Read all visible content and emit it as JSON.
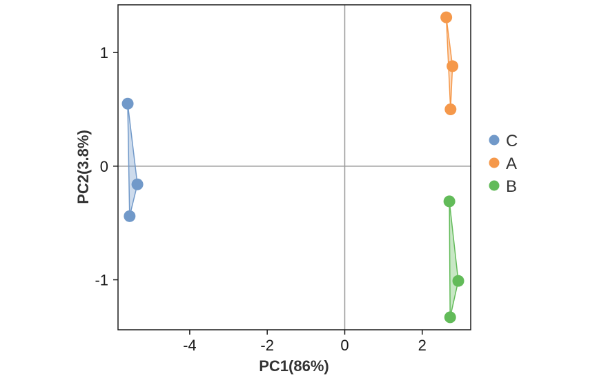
{
  "chart_data": {
    "type": "scatter",
    "xlabel": "PC1(86%)",
    "ylabel": "PC2(3.8%)",
    "xlim": [
      -5.85,
      3.25
    ],
    "ylim": [
      -1.44,
      1.42
    ],
    "xticks": [
      -4,
      -2,
      0,
      2
    ],
    "yticks": [
      1,
      0,
      -1
    ],
    "x_tick_labels": [
      "-4",
      "-2",
      "0",
      "2"
    ],
    "y_tick_labels": [
      "1",
      "0",
      "-1"
    ],
    "zero_lines": true,
    "grid": false,
    "legend_position": "right",
    "series": [
      {
        "name": "C",
        "color": "#7199c9",
        "points": [
          [
            -5.6,
            0.55
          ],
          [
            -5.35,
            -0.16
          ],
          [
            -5.55,
            -0.44
          ]
        ]
      },
      {
        "name": "A",
        "color": "#f5984a",
        "points": [
          [
            2.62,
            1.31
          ],
          [
            2.78,
            0.88
          ],
          [
            2.73,
            0.5
          ]
        ]
      },
      {
        "name": "B",
        "color": "#62bb59",
        "points": [
          [
            2.7,
            -0.31
          ],
          [
            2.93,
            -1.01
          ],
          [
            2.72,
            -1.33
          ]
        ]
      }
    ]
  }
}
